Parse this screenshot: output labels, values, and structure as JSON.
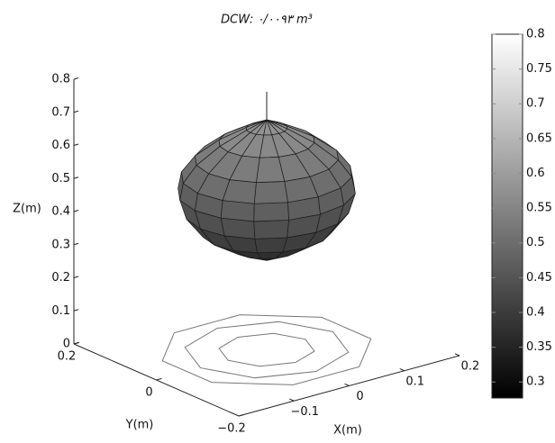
{
  "chart_data": {
    "type": "surface3d",
    "title": "DCW: ۰/۰۰۹۳ m³",
    "xlabel": "X(m)",
    "ylabel": "Y(m)",
    "zlabel": "Z(m)",
    "xlim": [
      -0.2,
      0.2
    ],
    "ylim": [
      -0.2,
      0.2
    ],
    "zlim": [
      0,
      0.8
    ],
    "xticks": [
      {
        "value": -0.1,
        "label": "−0.1"
      },
      0,
      0.1,
      0.2
    ],
    "yticks": [
      {
        "value": -0.2,
        "label": "−0.2"
      },
      0,
      0.2
    ],
    "zticks": [
      0,
      0.1,
      0.2,
      0.3,
      0.4,
      0.5,
      0.6,
      0.7,
      0.8
    ],
    "surface": {
      "z": [
        0.27,
        0.31,
        0.36,
        0.42,
        0.48,
        0.53,
        0.58,
        0.63,
        0.67,
        0.695
      ],
      "r": [
        0.0,
        0.05,
        0.095,
        0.12,
        0.13,
        0.125,
        0.105,
        0.07,
        0.03,
        0.0
      ]
    },
    "stem_top": 0.78,
    "colormap": "gray",
    "clim": [
      0.277,
      0.8
    ],
    "cticks": [
      0.3,
      0.35,
      0.4,
      0.45,
      0.5,
      0.55,
      0.6,
      0.65,
      0.7,
      0.75,
      0.8
    ]
  }
}
